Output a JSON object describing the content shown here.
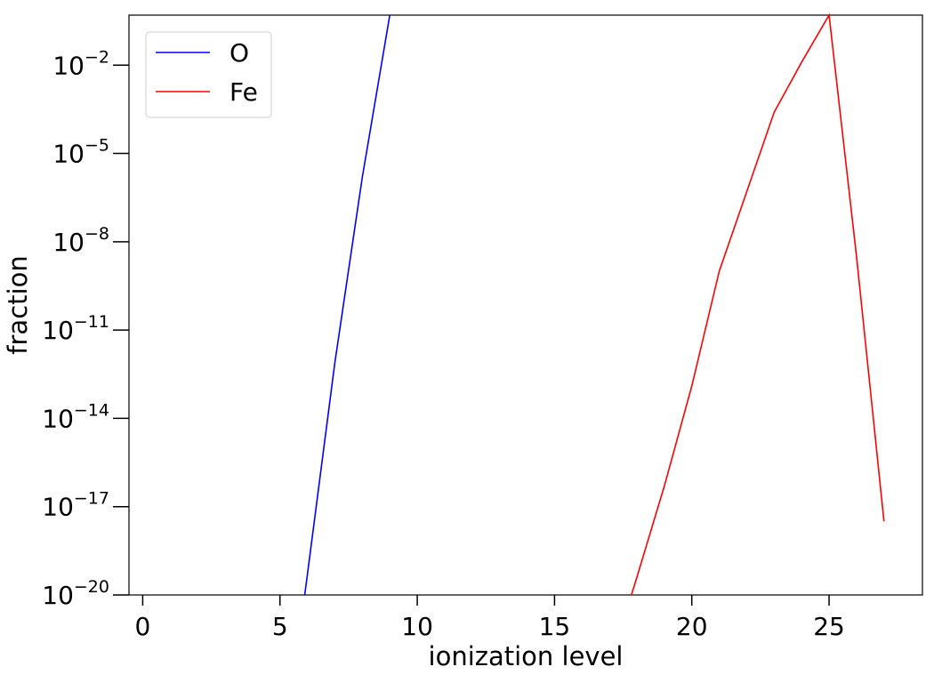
{
  "chart_data": {
    "type": "line",
    "xlabel": "ionization level",
    "ylabel": "fraction",
    "xlim": [
      -0.5,
      28.4
    ],
    "ylim_exponent": [
      -20,
      -0.3
    ],
    "y_scale": "log",
    "grid": false,
    "legend_position": "top-left",
    "x_ticks": [
      0,
      5,
      10,
      15,
      20,
      25
    ],
    "x_tick_labels": [
      "0",
      "5",
      "10",
      "15",
      "20",
      "25"
    ],
    "y_tick_exponents": [
      -2,
      -5,
      -8,
      -11,
      -14,
      -17,
      -20
    ],
    "y_tick_base": "10",
    "y_tick_labels": [
      "−2",
      "−5",
      "−8",
      "−11",
      "−14",
      "−17",
      "−20"
    ],
    "series": [
      {
        "name": "O",
        "color": "#0000ff",
        "x": [
          5.9,
          6,
          7,
          8,
          9
        ],
        "y_exponent": [
          -20,
          -19.3,
          -12.1,
          -5.8,
          -0.3
        ]
      },
      {
        "name": "Fe",
        "color": "#ff0000",
        "x": [
          17.8,
          18,
          19,
          20,
          21,
          22,
          23,
          24,
          25,
          26,
          27
        ],
        "y_exponent": [
          -20,
          -19.4,
          -16.3,
          -12.9,
          -9.0,
          -6.3,
          -3.6,
          -1.9,
          -0.3,
          -8.5,
          -17.5
        ]
      }
    ]
  }
}
